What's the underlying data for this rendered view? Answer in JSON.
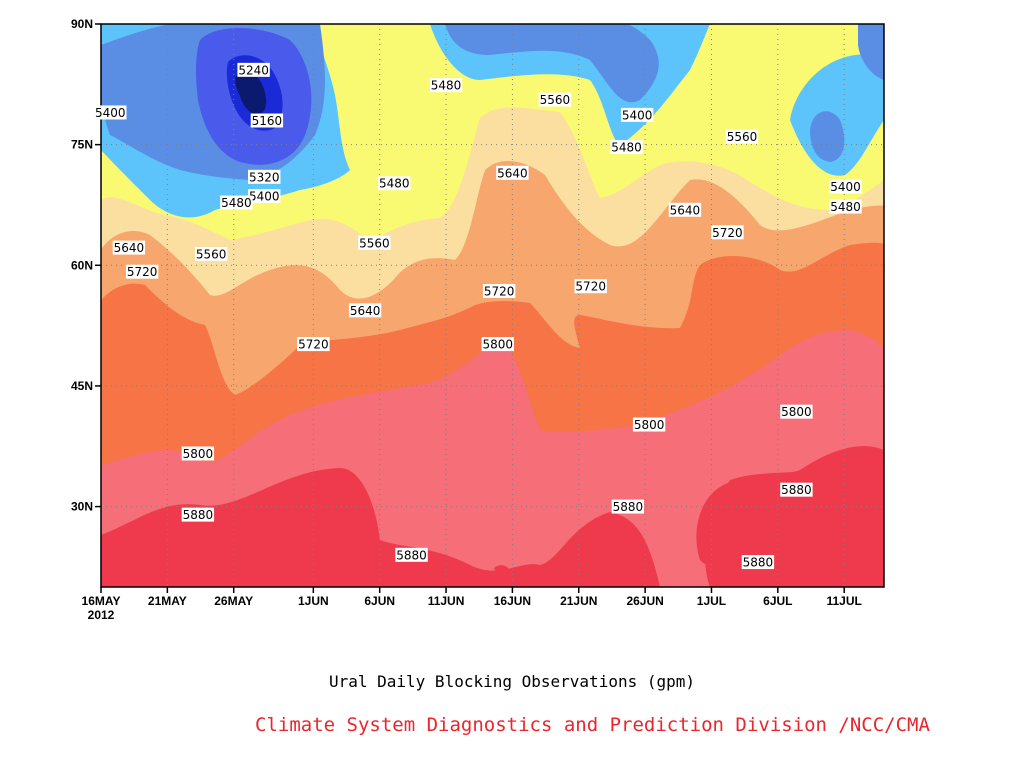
{
  "chart_data": {
    "type": "heatmap",
    "title": "Ural Daily Blocking Observations (gpm)",
    "credit": "Climate System Diagnostics and Prediction Division /NCC/CMA",
    "credit_color": "#e8262e",
    "x_ticks": [
      {
        "label": "16MAY",
        "sublabel": "2012",
        "day": 0
      },
      {
        "label": "21MAY",
        "day": 5
      },
      {
        "label": "26MAY",
        "day": 10
      },
      {
        "label": "1JUN",
        "day": 16
      },
      {
        "label": "6JUN",
        "day": 21
      },
      {
        "label": "11JUN",
        "day": 26
      },
      {
        "label": "16JUN",
        "day": 31
      },
      {
        "label": "21JUN",
        "day": 36
      },
      {
        "label": "26JUN",
        "day": 41
      },
      {
        "label": "1JUL",
        "day": 46
      },
      {
        "label": "6JUL",
        "day": 51
      },
      {
        "label": "11JUL",
        "day": 56
      }
    ],
    "x_range_days": [
      0,
      59
    ],
    "y_ticks": [
      {
        "label": "90N",
        "lat": 90
      },
      {
        "label": "75N",
        "lat": 75
      },
      {
        "label": "60N",
        "lat": 60
      },
      {
        "label": "45N",
        "lat": 45
      },
      {
        "label": "30N",
        "lat": 30
      }
    ],
    "y_range_lat": [
      20,
      90
    ],
    "grid": true,
    "levels": [
      5160,
      5240,
      5320,
      5400,
      5480,
      5560,
      5640,
      5720,
      5800,
      5880
    ],
    "level_colors": {
      "below_5160": "#0b1a6e",
      "5160": "#1a2ad6",
      "5240": "#4a5aea",
      "5320": "#5a8ee4",
      "5400": "#5cc4fa",
      "5480": "#fafa72",
      "5560": "#fadfa0",
      "5640": "#f7a66e",
      "5720": "#f77446",
      "5800": "#f56e78",
      "5880": "#ee3a4c"
    },
    "contour_labels": [
      {
        "text": "5240",
        "day": 11.5,
        "lat": 84.3
      },
      {
        "text": "5400",
        "day": 0.7,
        "lat": 79.0
      },
      {
        "text": "5160",
        "day": 12.5,
        "lat": 78.0
      },
      {
        "text": "5320",
        "day": 12.3,
        "lat": 71.0
      },
      {
        "text": "5400",
        "day": 12.3,
        "lat": 68.6
      },
      {
        "text": "5480",
        "day": 10.2,
        "lat": 67.8
      },
      {
        "text": "5480",
        "day": 22.1,
        "lat": 70.2
      },
      {
        "text": "5480",
        "day": 26.0,
        "lat": 82.4
      },
      {
        "text": "5560",
        "day": 34.2,
        "lat": 80.6
      },
      {
        "text": "5400",
        "day": 40.4,
        "lat": 78.7
      },
      {
        "text": "5480",
        "day": 39.6,
        "lat": 74.7
      },
      {
        "text": "5560",
        "day": 48.3,
        "lat": 76.0
      },
      {
        "text": "5400",
        "day": 56.1,
        "lat": 69.8
      },
      {
        "text": "5480",
        "day": 56.1,
        "lat": 67.3
      },
      {
        "text": "5640",
        "day": 31.0,
        "lat": 71.5
      },
      {
        "text": "5640",
        "day": 44.0,
        "lat": 66.9
      },
      {
        "text": "5640",
        "day": 2.1,
        "lat": 62.2
      },
      {
        "text": "5560",
        "day": 8.3,
        "lat": 61.4
      },
      {
        "text": "5560",
        "day": 20.6,
        "lat": 62.8
      },
      {
        "text": "5720",
        "day": 3.1,
        "lat": 59.2
      },
      {
        "text": "5720",
        "day": 47.2,
        "lat": 64.1
      },
      {
        "text": "5640",
        "day": 19.9,
        "lat": 54.4
      },
      {
        "text": "5720",
        "day": 30.0,
        "lat": 56.8
      },
      {
        "text": "5720",
        "day": 36.9,
        "lat": 57.4
      },
      {
        "text": "5720",
        "day": 16.0,
        "lat": 50.2
      },
      {
        "text": "5800",
        "day": 29.9,
        "lat": 50.2
      },
      {
        "text": "5800",
        "day": 52.4,
        "lat": 41.8
      },
      {
        "text": "5800",
        "day": 41.3,
        "lat": 40.2
      },
      {
        "text": "5800",
        "day": 7.3,
        "lat": 36.6
      },
      {
        "text": "5880",
        "day": 7.3,
        "lat": 29.0
      },
      {
        "text": "5880",
        "day": 39.7,
        "lat": 30.0
      },
      {
        "text": "5880",
        "day": 23.4,
        "lat": 24.0
      },
      {
        "text": "5880",
        "day": 52.4,
        "lat": 32.1
      },
      {
        "text": "5880",
        "day": 49.5,
        "lat": 23.1
      }
    ]
  }
}
